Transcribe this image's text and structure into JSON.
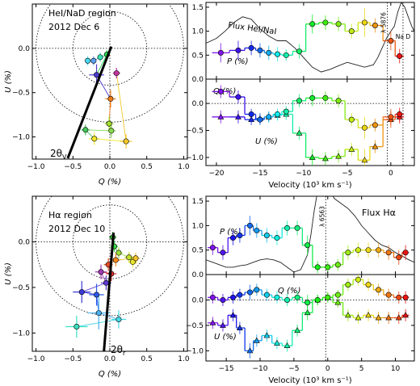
{
  "chart_data": [
    {
      "id": "qu_top",
      "type": "scatter",
      "title": "HeI/NaD region",
      "subtitle": "2012 Dec 6",
      "xlabel": "Q (%)",
      "ylabel": "U (%)",
      "xlim": [
        -1.05,
        1.05
      ],
      "ylim": [
        -1.25,
        0.5
      ],
      "xticks": [
        -1.0,
        -0.5,
        0.0,
        0.5,
        1.0
      ],
      "xticklabels": [
        "−1.0",
        "−0.5",
        "0.0",
        "0.5",
        "1.0"
      ],
      "yticks": [
        -1.0,
        -0.5,
        0.0
      ],
      "yticklabels": [
        "−1.0",
        "−0.5",
        "0.0"
      ],
      "circles": [
        0.5,
        1.0
      ],
      "angle_label": "2θ",
      "angle_sub": "V",
      "axis_line": [
        [
          -0.57,
          -1.24
        ],
        [
          0.02,
          0.02
        ]
      ],
      "points": [
        {
          "q": -0.3,
          "u": -0.14,
          "eq": 0.03,
          "eu": 0.05,
          "c": "#46daf2"
        },
        {
          "q": -0.22,
          "u": -0.14,
          "eq": 0.03,
          "eu": 0.05,
          "c": "#5a9ff0"
        },
        {
          "q": -0.13,
          "u": -0.1,
          "eq": 0.04,
          "eu": 0.05,
          "c": "#37e0b3"
        },
        {
          "q": -0.04,
          "u": -0.07,
          "eq": 0.04,
          "eu": 0.05,
          "c": "#29d84f"
        },
        {
          "q": -0.18,
          "u": -0.3,
          "eq": 0.1,
          "eu": 0.12,
          "c": "#4b3bcb"
        },
        {
          "q": 0.01,
          "u": -0.57,
          "eq": 0.07,
          "eu": 0.1,
          "c": "#ee7a18"
        },
        {
          "q": -0.01,
          "u": -0.85,
          "eq": 0.06,
          "eu": 0.08,
          "c": "#a6e12e"
        },
        {
          "q": 0.02,
          "u": -0.93,
          "eq": 0.06,
          "eu": 0.08,
          "c": "#8bd94f"
        },
        {
          "q": -0.33,
          "u": -0.92,
          "eq": 0.06,
          "eu": 0.06,
          "c": "#45c45a"
        },
        {
          "q": -0.21,
          "u": -1.02,
          "eq": 0.07,
          "eu": 0.07,
          "c": "#f0e82a"
        },
        {
          "q": 0.22,
          "u": -1.05,
          "eq": 0.08,
          "eu": 0.08,
          "c": "#f2c92a"
        },
        {
          "q": 0.09,
          "u": -0.28,
          "eq": 0.05,
          "eu": 0.06,
          "c": "#c1359f"
        }
      ]
    },
    {
      "id": "spec_top",
      "type": "line",
      "xlim": [
        -21.2,
        2.7
      ],
      "xticks": [
        -20,
        -15,
        -10,
        -5,
        0
      ],
      "xticklabels": [
        "−20",
        "−15",
        "−10",
        "−5",
        "0"
      ],
      "xlabel": "Velocity (10³ km s⁻¹)",
      "flux_label": "Flux HeI/NaI",
      "line_markers": [
        {
          "x": -0.4,
          "label": "λ 5876"
        },
        {
          "x": 1.4,
          "label": "Na D"
        }
      ],
      "top": {
        "ylim": [
          0.0,
          1.6
        ],
        "yticks": [
          0.0,
          0.5,
          1.0,
          1.5
        ],
        "yticklabels": [
          "0.0",
          "0.5",
          "1.0",
          "1.5"
        ],
        "series_label": "P (%)",
        "P": {
          "x": [
            -19.5,
            -17.5,
            -16.0,
            -15.0,
            -14.0,
            -13.0,
            -12.0,
            -10.5,
            -9.0,
            -7.5,
            -6.0,
            -4.5,
            -3.0,
            -1.8,
            0.0,
            1.0
          ],
          "y": [
            0.55,
            0.6,
            0.65,
            0.6,
            0.55,
            0.52,
            0.5,
            0.58,
            1.15,
            1.18,
            1.15,
            1.0,
            1.18,
            1.12,
            0.8,
            0.48
          ],
          "err": [
            0.2,
            0.2,
            0.15,
            0.15,
            0.15,
            0.15,
            0.12,
            0.15,
            0.2,
            0.15,
            0.15,
            0.15,
            0.3,
            0.15,
            0.2,
            0.15
          ]
        },
        "flux": {
          "x": [
            -21.2,
            -20.0,
            -19.0,
            -18.0,
            -17.0,
            -16.0,
            -15.0,
            -14.0,
            -13.0,
            -12.0,
            -11.0,
            -10.0,
            -9.0,
            -8.0,
            -7.0,
            -6.0,
            -5.0,
            -4.0,
            -3.0,
            -2.0,
            -1.5,
            -1.0,
            -0.5,
            0.0,
            0.4,
            0.8,
            1.2,
            1.6,
            2.0,
            2.4,
            2.7
          ],
          "y": [
            0.75,
            0.85,
            1.0,
            1.18,
            1.3,
            1.25,
            1.05,
            0.9,
            0.8,
            0.8,
            0.65,
            0.45,
            0.25,
            0.15,
            0.2,
            0.28,
            0.35,
            0.3,
            0.25,
            0.3,
            0.45,
            0.65,
            0.85,
            1.0,
            1.1,
            1.4,
            1.6,
            1.5,
            1.3,
            1.1,
            1.0
          ]
        }
      },
      "bottom": {
        "ylim": [
          -1.15,
          0.45
        ],
        "yticks": [
          -1.0,
          -0.5,
          0.0
        ],
        "yticklabels": [
          "−1.0",
          "−0.5",
          "0.0"
        ],
        "q_label": "Q (%)",
        "u_label": "U (%)",
        "Q": {
          "x": [
            -19.5,
            -17.5,
            -16.0,
            -15.0,
            -14.0,
            -13.0,
            -12.0,
            -10.5,
            -9.0,
            -7.5,
            -6.0,
            -4.5,
            -3.0,
            -1.8,
            0.0,
            1.0
          ],
          "y": [
            0.22,
            0.12,
            -0.2,
            -0.3,
            -0.25,
            -0.2,
            -0.15,
            0.05,
            0.1,
            0.1,
            0.05,
            -0.3,
            -0.45,
            -0.4,
            -0.25,
            -0.2
          ],
          "err": [
            0.12,
            0.12,
            0.1,
            0.1,
            0.1,
            0.1,
            0.1,
            0.12,
            0.15,
            0.12,
            0.12,
            0.12,
            0.2,
            0.12,
            0.15,
            0.12
          ]
        },
        "U": {
          "x": [
            -19.5,
            -17.5,
            -16.0,
            -15.0,
            -14.0,
            -13.0,
            -12.0,
            -10.5,
            -9.0,
            -7.5,
            -6.0,
            -4.5,
            -3.0,
            -1.8,
            0.0,
            1.0
          ],
          "y": [
            -0.25,
            -0.25,
            -0.3,
            -0.28,
            -0.25,
            -0.22,
            -0.2,
            -0.55,
            -1.0,
            -1.02,
            -0.98,
            -0.85,
            -1.05,
            -0.8,
            -0.3,
            -0.25
          ],
          "err": [
            0.12,
            0.12,
            0.1,
            0.1,
            0.1,
            0.1,
            0.1,
            0.12,
            0.15,
            0.12,
            0.12,
            0.12,
            0.2,
            0.12,
            0.15,
            0.12
          ]
        }
      }
    },
    {
      "id": "qu_bottom",
      "type": "scatter",
      "title": "Hα region",
      "subtitle": "2012 Dec 10",
      "xlabel": "Q (%)",
      "ylabel": "U (%)",
      "xlim": [
        -1.05,
        1.05
      ],
      "ylim": [
        -1.2,
        0.5
      ],
      "xticks": [
        -1.0,
        -0.5,
        0.0,
        0.5,
        1.0
      ],
      "xticklabels": [
        "−1.0",
        "−0.5",
        "0.0",
        "0.5",
        "1.0"
      ],
      "yticks": [
        -1.0,
        -0.5,
        0.0
      ],
      "yticklabels": [
        "−1.0",
        "−0.5",
        "0.0"
      ],
      "circles": [
        0.5,
        1.0
      ],
      "angle_label": "2θ",
      "angle_sub": "r",
      "axis_line": [
        [
          -0.08,
          -1.2
        ],
        [
          0.05,
          0.1
        ]
      ],
      "points": [
        {
          "q": 0.04,
          "u": 0.05,
          "eq": 0.05,
          "eu": 0.06,
          "c": "#35c43a"
        },
        {
          "q": 0.06,
          "u": -0.05,
          "eq": 0.05,
          "eu": 0.06,
          "c": "#3ad84a"
        },
        {
          "q": 0.12,
          "u": -0.12,
          "eq": 0.05,
          "eu": 0.06,
          "c": "#9be03a"
        },
        {
          "q": 0.26,
          "u": -0.17,
          "eq": 0.06,
          "eu": 0.06,
          "c": "#c5e02e"
        },
        {
          "q": 0.31,
          "u": -0.22,
          "eq": 0.06,
          "eu": 0.06,
          "c": "#e8e82c"
        },
        {
          "q": 0.35,
          "u": -0.18,
          "eq": 0.06,
          "eu": 0.06,
          "c": "#f2c22a"
        },
        {
          "q": 0.08,
          "u": -0.2,
          "eq": 0.06,
          "eu": 0.07,
          "c": "#f28a1f"
        },
        {
          "q": -0.02,
          "u": -0.25,
          "eq": 0.06,
          "eu": 0.07,
          "c": "#e14a22"
        },
        {
          "q": 0.02,
          "u": -0.35,
          "eq": 0.07,
          "eu": 0.08,
          "c": "#d62a2a"
        },
        {
          "q": -0.12,
          "u": -0.33,
          "eq": 0.08,
          "eu": 0.08,
          "c": "#a03ab5"
        },
        {
          "q": -0.05,
          "u": -0.45,
          "eq": 0.07,
          "eu": 0.08,
          "c": "#5a3ad0"
        },
        {
          "q": -0.38,
          "u": -0.55,
          "eq": 0.12,
          "eu": 0.12,
          "c": "#3a3ad8"
        },
        {
          "q": -0.18,
          "u": -0.58,
          "eq": 0.1,
          "eu": 0.12,
          "c": "#2a5ae8"
        },
        {
          "q": -0.15,
          "u": -0.78,
          "eq": 0.15,
          "eu": 0.18,
          "c": "#4ab0f0"
        },
        {
          "q": 0.12,
          "u": -0.85,
          "eq": 0.1,
          "eu": 0.1,
          "c": "#46d8e8"
        },
        {
          "q": -0.45,
          "u": -0.93,
          "eq": 0.15,
          "eu": 0.12,
          "c": "#3ae0c0"
        }
      ]
    },
    {
      "id": "spec_bottom",
      "type": "line",
      "xlim": [
        -18.0,
        12.8
      ],
      "xticks": [
        -15,
        -10,
        -5,
        0,
        5,
        10
      ],
      "xticklabels": [
        "−15",
        "−10",
        "−5",
        "0",
        "5",
        "10"
      ],
      "xlabel": "Velocity (10³ km s⁻¹)",
      "flux_label": "Flux Hα",
      "line_markers": [
        {
          "x": -0.3,
          "label": "λ 6563"
        }
      ],
      "top": {
        "ylim": [
          0.0,
          1.6
        ],
        "yticks": [
          0.0,
          0.5,
          1.0,
          1.5
        ],
        "yticklabels": [
          "0.0",
          "0.5",
          "1.0",
          "1.5"
        ],
        "series_label": "P (%)",
        "P": {
          "x": [
            -17.0,
            -15.5,
            -14.0,
            -13.0,
            -11.5,
            -10.5,
            -9.0,
            -7.5,
            -6.0,
            -4.5,
            -3.0,
            -1.5,
            0.0,
            1.5,
            3.0,
            4.5,
            6.0,
            7.5,
            9.0,
            10.5,
            11.5
          ],
          "y": [
            0.55,
            0.45,
            0.75,
            0.8,
            1.0,
            0.9,
            0.8,
            0.75,
            0.95,
            0.95,
            0.6,
            0.15,
            0.15,
            0.2,
            0.45,
            0.5,
            0.5,
            0.5,
            0.45,
            0.35,
            0.45
          ],
          "err": [
            0.15,
            0.15,
            0.15,
            0.15,
            0.2,
            0.15,
            0.15,
            0.15,
            0.15,
            0.15,
            0.2,
            0.12,
            0.12,
            0.12,
            0.15,
            0.15,
            0.15,
            0.15,
            0.15,
            0.15,
            0.15
          ]
        },
        "flux": {
          "x": [
            -18.0,
            -17.0,
            -16.0,
            -15.0,
            -14.0,
            -13.0,
            -12.0,
            -11.0,
            -10.0,
            -9.0,
            -8.0,
            -7.0,
            -6.0,
            -5.0,
            -4.0,
            -3.0,
            -2.5,
            -2.0,
            -1.5,
            -1.0,
            -0.5,
            0.0,
            0.5,
            1.0,
            2.0,
            3.0,
            4.0,
            5.0,
            6.0,
            7.0,
            8.0,
            9.0,
            10.0,
            11.0,
            12.0,
            12.8
          ],
          "y": [
            0.3,
            0.25,
            0.2,
            0.15,
            0.15,
            0.18,
            0.2,
            0.25,
            0.3,
            0.32,
            0.3,
            0.25,
            0.15,
            0.05,
            0.1,
            0.4,
            0.8,
            1.3,
            1.7,
            1.9,
            1.95,
            1.8,
            1.65,
            1.55,
            1.45,
            1.35,
            1.2,
            1.0,
            0.85,
            0.7,
            0.6,
            0.55,
            0.45,
            0.38,
            0.3,
            0.25
          ]
        }
      },
      "bottom": {
        "ylim": [
          -1.2,
          0.5
        ],
        "yticks": [
          -1.0,
          -0.5,
          0.0
        ],
        "yticklabels": [
          "−1.0",
          "−0.5",
          "0.0"
        ],
        "q_label": "Q (%)",
        "u_label": "U (%)",
        "Q": {
          "x": [
            -17.0,
            -15.5,
            -14.0,
            -13.0,
            -11.5,
            -10.5,
            -9.0,
            -7.5,
            -6.0,
            -4.5,
            -3.0,
            -1.5,
            0.0,
            1.5,
            3.0,
            4.5,
            6.0,
            7.5,
            9.0,
            10.5,
            11.5
          ],
          "y": [
            0.05,
            0.0,
            0.05,
            0.1,
            0.15,
            0.2,
            0.1,
            0.05,
            0.0,
            0.05,
            -0.05,
            0.0,
            0.05,
            0.1,
            0.3,
            0.4,
            0.3,
            0.2,
            0.1,
            0.05,
            0.05
          ],
          "err": [
            0.12,
            0.12,
            0.12,
            0.12,
            0.15,
            0.12,
            0.12,
            0.12,
            0.12,
            0.12,
            0.15,
            0.1,
            0.1,
            0.1,
            0.12,
            0.12,
            0.12,
            0.12,
            0.12,
            0.12,
            0.12
          ]
        },
        "U": {
          "x": [
            -17.0,
            -15.5,
            -14.0,
            -13.0,
            -11.5,
            -10.5,
            -9.0,
            -7.5,
            -6.0,
            -4.5,
            -3.0,
            -1.5,
            0.0,
            1.5,
            3.0,
            4.5,
            6.0,
            7.5,
            9.0,
            10.5,
            11.5
          ],
          "y": [
            -0.45,
            -0.5,
            -0.3,
            -0.55,
            -1.0,
            -0.8,
            -0.7,
            -0.85,
            -0.9,
            -0.6,
            -0.25,
            0.0,
            0.05,
            -0.05,
            -0.3,
            -0.35,
            -0.3,
            -0.35,
            -0.35,
            -0.35,
            -0.3
          ],
          "err": [
            0.12,
            0.12,
            0.12,
            0.12,
            0.15,
            0.12,
            0.12,
            0.12,
            0.12,
            0.12,
            0.15,
            0.1,
            0.1,
            0.1,
            0.12,
            0.12,
            0.12,
            0.12,
            0.12,
            0.12,
            0.12
          ]
        }
      }
    }
  ]
}
